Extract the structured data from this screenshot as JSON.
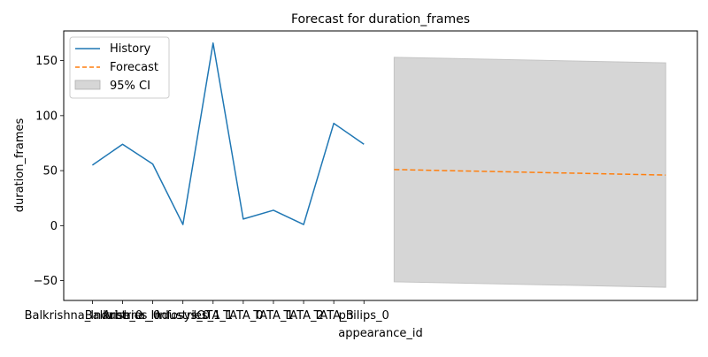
{
  "chart_data": {
    "type": "line",
    "title": "Forecast for duration_frames",
    "xlabel": "appearance_id",
    "ylabel": "duration_frames",
    "ylim": [
      -68,
      177
    ],
    "grid": false,
    "legend_position": "top-left",
    "x_tick_labels": [
      "Balkrishna_Industries_0",
      "Arbe_0",
      "Balkrishna_Industries_1",
      "Infosys_0",
      "IOTA_1",
      "TATA_0",
      "TATA_1",
      "TATA_2",
      "TATA_3",
      "philips_0"
    ],
    "y_ticks": [
      -50,
      0,
      50,
      100,
      150
    ],
    "series": [
      {
        "name": "History",
        "style": "solid",
        "color": "#1f77b4",
        "x": [
          0,
          1,
          2,
          3,
          4,
          5,
          6,
          7,
          8,
          9
        ],
        "values": [
          55,
          74,
          56,
          1,
          166,
          6,
          14,
          1,
          93,
          74
        ]
      },
      {
        "name": "Forecast",
        "style": "dashed",
        "color": "#ff7f0e",
        "x": [
          10,
          19
        ],
        "values": [
          51,
          46
        ]
      }
    ],
    "confidence_band": {
      "name": "95% CI",
      "color": "#d6d6d6",
      "x": [
        10,
        19
      ],
      "lower": [
        -51,
        -56
      ],
      "upper": [
        153,
        148
      ]
    },
    "x_range": [
      -0.95,
      20.05
    ]
  }
}
